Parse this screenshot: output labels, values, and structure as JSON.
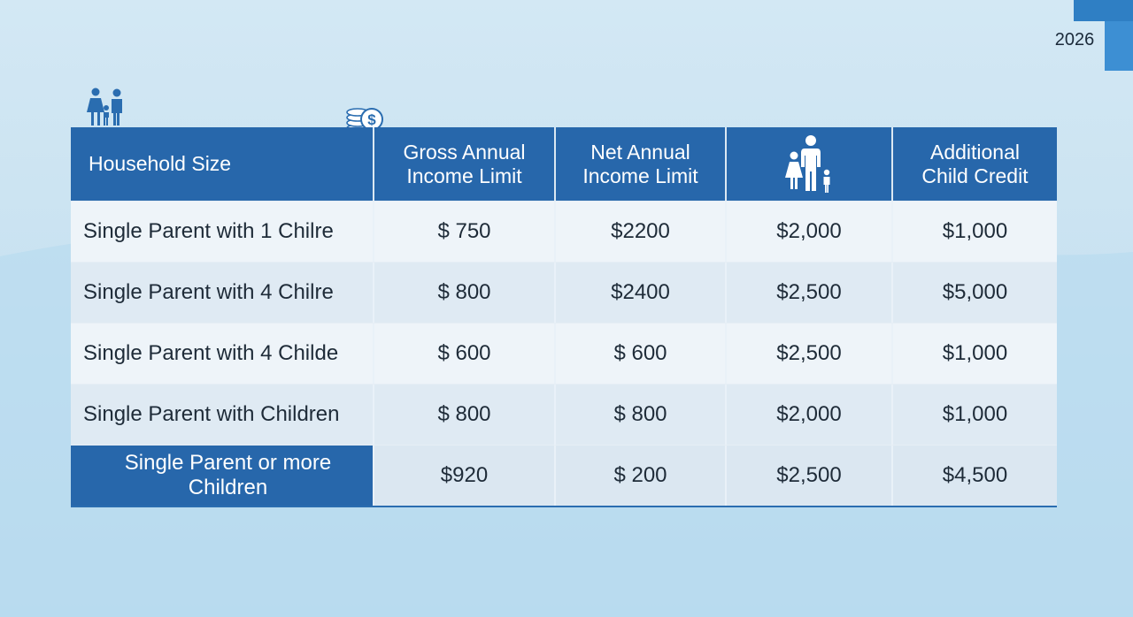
{
  "year_badge": "2026",
  "icons": {
    "top_family": "family-icon",
    "coins": "coins-dollar-icon",
    "header_family": "family-icon"
  },
  "colors": {
    "header_bg": "#2767ab",
    "accent": "#3d8fd3",
    "row_light": "#eef4f9",
    "row_mid": "#dfeaf3"
  },
  "table": {
    "headers": [
      "Household Size",
      "Gross Annual Income Limit",
      "Net Annual Income Limit",
      "",
      "Additional Child Credit"
    ],
    "header_lines": {
      "gross": [
        "Gross Annual",
        "Income Limit"
      ],
      "net": [
        "Net Annual",
        "Income Limit"
      ],
      "credit": [
        "Additional",
        "Child Credit"
      ]
    },
    "rows": [
      [
        "Single Parent with 1 Chilre",
        "$ 750",
        "$2200",
        "$2,000",
        "$1,000"
      ],
      [
        "Single Parent with 4 Chilre",
        "$ 800",
        "$2400",
        "$2,500",
        "$5,000"
      ],
      [
        "Single Parent with 4 Childe",
        "$ 600",
        "$ 600",
        "$2,500",
        "$1,000"
      ],
      [
        "Single Parent with Children",
        "$ 800",
        "$ 800",
        "$2,000",
        "$1,000"
      ],
      [
        "Single Parent or more Children",
        "$920",
        "$ 200",
        "$2,500",
        "$4,500"
      ]
    ]
  }
}
